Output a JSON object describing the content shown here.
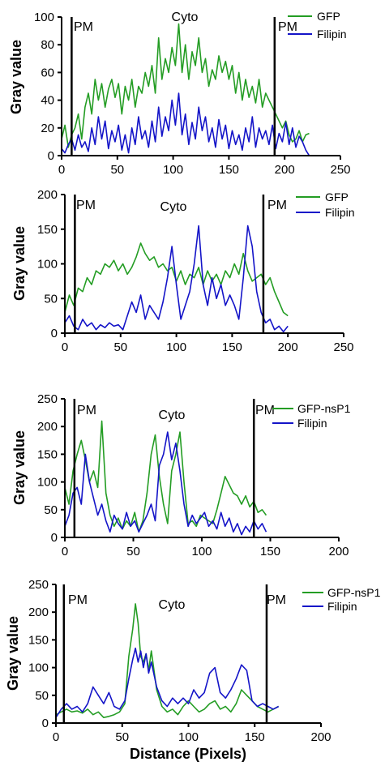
{
  "colors": {
    "gfp": "#249d24",
    "filipin": "#1414c8",
    "axis": "#000000"
  },
  "chart_data": [
    {
      "type": "line",
      "ylabel": "Gray value",
      "xlabel": "",
      "xlim": [
        0,
        250
      ],
      "ylim": [
        0,
        100
      ],
      "xticks": [
        "0",
        "50",
        "100",
        "150",
        "200",
        "250"
      ],
      "yticks": [
        "0",
        "20",
        "40",
        "60",
        "80",
        "100"
      ],
      "markers": [
        {
          "label": "PM",
          "x": 9
        },
        {
          "label": "PM",
          "x": 191
        }
      ],
      "region_label": {
        "text": "Cyto",
        "x": 100
      },
      "legend": [
        "GFP",
        "Filipin"
      ],
      "series": [
        {
          "name": "GFP",
          "color": "#249d24",
          "x": [
            0,
            3,
            6,
            9,
            12,
            15,
            18,
            21,
            24,
            27,
            30,
            33,
            36,
            39,
            42,
            45,
            48,
            51,
            54,
            57,
            60,
            63,
            66,
            69,
            72,
            75,
            78,
            81,
            84,
            87,
            90,
            93,
            96,
            99,
            102,
            105,
            108,
            111,
            114,
            117,
            120,
            123,
            126,
            129,
            132,
            135,
            138,
            141,
            144,
            147,
            150,
            153,
            156,
            159,
            162,
            165,
            168,
            171,
            174,
            177,
            180,
            183,
            186,
            189,
            192,
            195,
            198,
            201,
            204,
            207,
            210,
            213,
            216,
            219,
            222
          ],
          "values": [
            12,
            22,
            6,
            15,
            20,
            30,
            12,
            35,
            45,
            30,
            55,
            40,
            52,
            35,
            48,
            55,
            42,
            52,
            30,
            50,
            40,
            55,
            35,
            50,
            45,
            60,
            50,
            65,
            45,
            85,
            55,
            70,
            60,
            78,
            65,
            95,
            60,
            80,
            55,
            75,
            65,
            85,
            60,
            70,
            50,
            62,
            55,
            72,
            60,
            68,
            55,
            65,
            45,
            60,
            40,
            55,
            42,
            50,
            38,
            55,
            35,
            45,
            40,
            35,
            30,
            25,
            20,
            25,
            15,
            10,
            12,
            18,
            10,
            15,
            16
          ]
        },
        {
          "name": "Filipin",
          "color": "#1414c8",
          "x": [
            0,
            3,
            6,
            9,
            12,
            15,
            18,
            21,
            24,
            27,
            30,
            33,
            36,
            39,
            42,
            45,
            48,
            51,
            54,
            57,
            60,
            63,
            66,
            69,
            72,
            75,
            78,
            81,
            84,
            87,
            90,
            93,
            96,
            99,
            102,
            105,
            108,
            111,
            114,
            117,
            120,
            123,
            126,
            129,
            132,
            135,
            138,
            141,
            144,
            147,
            150,
            153,
            156,
            159,
            162,
            165,
            168,
            171,
            174,
            177,
            180,
            183,
            186,
            189,
            192,
            195,
            198,
            201,
            204,
            207,
            210,
            213,
            216,
            219,
            222
          ],
          "values": [
            5,
            2,
            8,
            12,
            4,
            15,
            6,
            10,
            3,
            20,
            8,
            28,
            12,
            25,
            5,
            18,
            10,
            22,
            4,
            15,
            2,
            20,
            8,
            28,
            12,
            18,
            6,
            25,
            10,
            35,
            14,
            28,
            18,
            40,
            22,
            45,
            15,
            30,
            8,
            24,
            12,
            35,
            18,
            28,
            10,
            20,
            6,
            26,
            12,
            22,
            5,
            18,
            8,
            15,
            4,
            20,
            10,
            28,
            6,
            20,
            12,
            18,
            8,
            22,
            5,
            16,
            10,
            24,
            8,
            20,
            6,
            14,
            10,
            4,
            0
          ]
        }
      ]
    },
    {
      "type": "line",
      "ylabel": "Gray value",
      "xlabel": "",
      "xlim": [
        0,
        250
      ],
      "ylim": [
        0,
        200
      ],
      "xticks": [
        "0",
        "50",
        "100",
        "150",
        "200",
        "250"
      ],
      "yticks": [
        "0",
        "50",
        "100",
        "150",
        "200"
      ],
      "markers": [
        {
          "label": "PM",
          "x": 9
        },
        {
          "label": "PM",
          "x": 178
        }
      ],
      "region_label": {
        "text": "Cyto",
        "x": 92
      },
      "legend": [
        "GFP",
        "Filipin"
      ],
      "series": [
        {
          "name": "GFP",
          "color": "#249d24",
          "x": [
            0,
            4,
            8,
            12,
            16,
            20,
            24,
            28,
            32,
            36,
            40,
            44,
            48,
            52,
            56,
            60,
            64,
            68,
            72,
            76,
            80,
            84,
            88,
            92,
            96,
            100,
            104,
            108,
            112,
            116,
            120,
            124,
            128,
            132,
            136,
            140,
            144,
            148,
            152,
            156,
            160,
            164,
            168,
            172,
            176,
            180,
            184,
            188,
            192,
            196,
            200
          ],
          "values": [
            30,
            55,
            40,
            65,
            60,
            80,
            70,
            90,
            85,
            100,
            95,
            105,
            90,
            100,
            85,
            95,
            110,
            130,
            115,
            105,
            110,
            95,
            100,
            90,
            95,
            75,
            90,
            70,
            85,
            80,
            95,
            70,
            90,
            75,
            85,
            70,
            90,
            80,
            100,
            85,
            115,
            90,
            75,
            80,
            85,
            70,
            80,
            60,
            45,
            30,
            25
          ]
        },
        {
          "name": "Filipin",
          "color": "#1414c8",
          "x": [
            0,
            4,
            8,
            12,
            16,
            20,
            24,
            28,
            32,
            36,
            40,
            44,
            48,
            52,
            56,
            60,
            64,
            68,
            72,
            76,
            80,
            84,
            88,
            92,
            96,
            100,
            104,
            108,
            112,
            116,
            120,
            124,
            128,
            132,
            136,
            140,
            144,
            148,
            152,
            156,
            160,
            164,
            168,
            172,
            176,
            180,
            184,
            188,
            192,
            196,
            200
          ],
          "values": [
            15,
            25,
            10,
            5,
            20,
            10,
            15,
            5,
            12,
            8,
            15,
            10,
            12,
            5,
            25,
            45,
            30,
            55,
            20,
            40,
            30,
            20,
            45,
            80,
            125,
            70,
            20,
            40,
            60,
            100,
            155,
            70,
            40,
            80,
            50,
            70,
            40,
            55,
            40,
            20,
            80,
            155,
            125,
            60,
            30,
            15,
            20,
            5,
            10,
            2,
            10
          ]
        }
      ]
    },
    {
      "type": "line",
      "ylabel": "Gray value",
      "xlabel": "",
      "xlim": [
        0,
        200
      ],
      "ylim": [
        0,
        250
      ],
      "xticks": [
        "0",
        "50",
        "100",
        "150",
        "200"
      ],
      "yticks": [
        "0",
        "50",
        "100",
        "150",
        "200",
        "250"
      ],
      "markers": [
        {
          "label": "PM",
          "x": 7
        },
        {
          "label": "PM",
          "x": 138
        }
      ],
      "region_label": {
        "text": "Cyto",
        "x": 78
      },
      "legend": [
        "GFP-nsP1",
        "Filipin"
      ],
      "series": [
        {
          "name": "GFP-nsP1",
          "color": "#249d24",
          "x": [
            0,
            3,
            6,
            9,
            12,
            15,
            18,
            21,
            24,
            27,
            30,
            33,
            36,
            39,
            42,
            45,
            48,
            51,
            54,
            57,
            60,
            63,
            66,
            69,
            72,
            75,
            78,
            81,
            84,
            87,
            90,
            93,
            96,
            99,
            102,
            105,
            108,
            111,
            114,
            117,
            120,
            123,
            126,
            129,
            132,
            135,
            138,
            141,
            144,
            147
          ],
          "values": [
            90,
            60,
            120,
            150,
            175,
            140,
            100,
            120,
            90,
            210,
            80,
            40,
            20,
            35,
            15,
            30,
            20,
            45,
            10,
            30,
            80,
            150,
            185,
            110,
            60,
            25,
            120,
            150,
            190,
            100,
            25,
            30,
            20,
            40,
            35,
            30,
            25,
            50,
            80,
            110,
            95,
            80,
            75,
            60,
            75,
            55,
            65,
            45,
            50,
            40
          ]
        },
        {
          "name": "Filipin",
          "color": "#1414c8",
          "x": [
            0,
            3,
            6,
            9,
            12,
            15,
            18,
            21,
            24,
            27,
            30,
            33,
            36,
            39,
            42,
            45,
            48,
            51,
            54,
            57,
            60,
            63,
            66,
            69,
            72,
            75,
            78,
            81,
            84,
            87,
            90,
            93,
            96,
            99,
            102,
            105,
            108,
            111,
            114,
            117,
            120,
            123,
            126,
            129,
            132,
            135,
            138,
            141,
            144,
            147
          ],
          "values": [
            20,
            40,
            80,
            90,
            60,
            150,
            100,
            70,
            40,
            60,
            30,
            10,
            40,
            25,
            15,
            45,
            20,
            30,
            10,
            25,
            40,
            60,
            30,
            130,
            150,
            190,
            140,
            170,
            120,
            60,
            20,
            40,
            25,
            35,
            45,
            20,
            30,
            15,
            45,
            20,
            35,
            10,
            25,
            5,
            20,
            10,
            30,
            15,
            25,
            10
          ]
        }
      ]
    },
    {
      "type": "line",
      "ylabel": "Gray value",
      "xlabel": "Distance (Pixels)",
      "xlim": [
        0,
        200
      ],
      "ylim": [
        0,
        250
      ],
      "xticks": [
        "0",
        "50",
        "100",
        "150",
        "200"
      ],
      "yticks": [
        "0",
        "50",
        "100",
        "150",
        "200",
        "250"
      ],
      "markers": [
        {
          "label": "PM",
          "x": 6
        },
        {
          "label": "PM",
          "x": 159
        }
      ],
      "region_label": {
        "text": "Cyto",
        "x": 85
      },
      "legend": [
        "GFP-nsP1",
        "Filipin"
      ],
      "series": [
        {
          "name": "GFP-nsP1",
          "color": "#249d24",
          "x": [
            0,
            4,
            8,
            12,
            16,
            20,
            24,
            28,
            32,
            36,
            40,
            44,
            48,
            52,
            55,
            58,
            60,
            62,
            64,
            66,
            68,
            70,
            72,
            76,
            80,
            84,
            88,
            92,
            96,
            100,
            104,
            108,
            112,
            116,
            120,
            124,
            128,
            132,
            136,
            140,
            144,
            148,
            152,
            156,
            160,
            164,
            168
          ],
          "values": [
            15,
            20,
            25,
            20,
            22,
            18,
            25,
            15,
            20,
            10,
            12,
            15,
            20,
            35,
            120,
            170,
            215,
            180,
            120,
            110,
            125,
            95,
            130,
            60,
            30,
            20,
            25,
            15,
            30,
            40,
            30,
            20,
            25,
            35,
            40,
            25,
            30,
            20,
            35,
            60,
            50,
            40,
            30,
            25,
            20,
            25,
            30
          ]
        },
        {
          "name": "Filipin",
          "color": "#1414c8",
          "x": [
            0,
            4,
            8,
            12,
            16,
            20,
            24,
            28,
            32,
            36,
            40,
            44,
            48,
            52,
            55,
            58,
            60,
            62,
            64,
            66,
            68,
            70,
            72,
            76,
            80,
            84,
            88,
            92,
            96,
            100,
            104,
            108,
            112,
            116,
            120,
            124,
            128,
            132,
            136,
            140,
            144,
            148,
            152,
            156,
            160,
            164,
            168
          ],
          "values": [
            10,
            25,
            35,
            25,
            30,
            20,
            35,
            65,
            50,
            35,
            55,
            30,
            25,
            40,
            80,
            115,
            135,
            110,
            130,
            100,
            125,
            90,
            110,
            65,
            40,
            30,
            45,
            35,
            45,
            35,
            60,
            45,
            55,
            90,
            100,
            55,
            45,
            60,
            80,
            105,
            95,
            40,
            30,
            35,
            30,
            25,
            30
          ]
        }
      ]
    }
  ]
}
